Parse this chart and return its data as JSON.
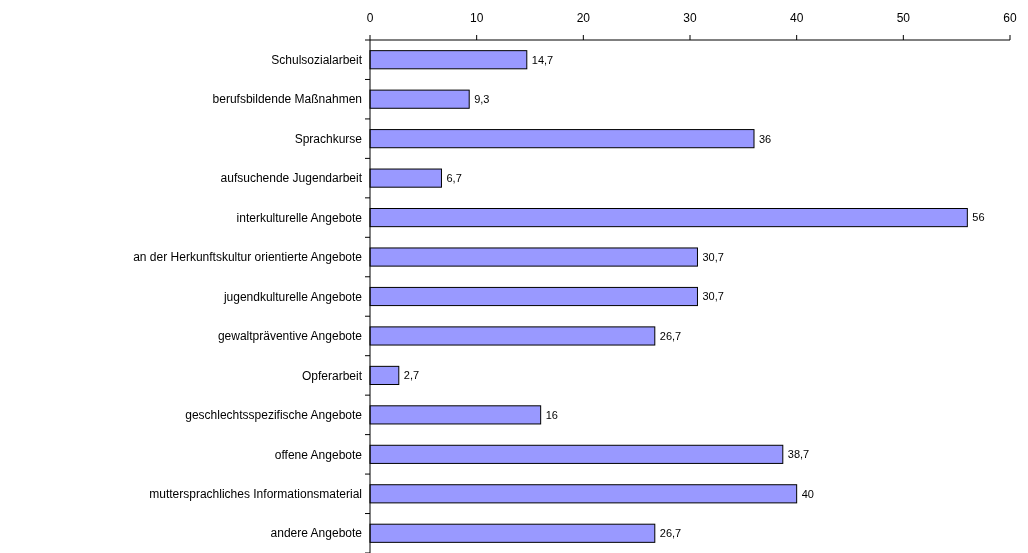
{
  "chart_data": {
    "type": "bar",
    "orientation": "horizontal",
    "categories": [
      "Schulsozialarbeit",
      "berufsbildende Maßnahmen",
      "Sprachkurse",
      "aufsuchende Jugendarbeit",
      "interkulturelle Angebote",
      "an der Herkunftskultur orientierte Angebote",
      "jugendkulturelle Angebote",
      "gewaltpräventive Angebote",
      "Opferarbeit",
      "geschlechtsspezifische Angebote",
      "offene Angebote",
      "muttersprachliches Informationsmaterial",
      "andere Angebote"
    ],
    "values": [
      14.7,
      9.3,
      36,
      6.7,
      56,
      30.7,
      30.7,
      26.7,
      2.7,
      16,
      38.7,
      40,
      26.7
    ],
    "value_labels": [
      "14,7",
      "9,3",
      "36",
      "6,7",
      "56",
      "30,7",
      "30,7",
      "26,7",
      "2,7",
      "16",
      "38,7",
      "40",
      "26,7"
    ],
    "color": "#9999ff",
    "xlim": [
      0,
      60
    ],
    "xticks": [
      0,
      10,
      20,
      30,
      40,
      50,
      60
    ],
    "grid": false
  }
}
